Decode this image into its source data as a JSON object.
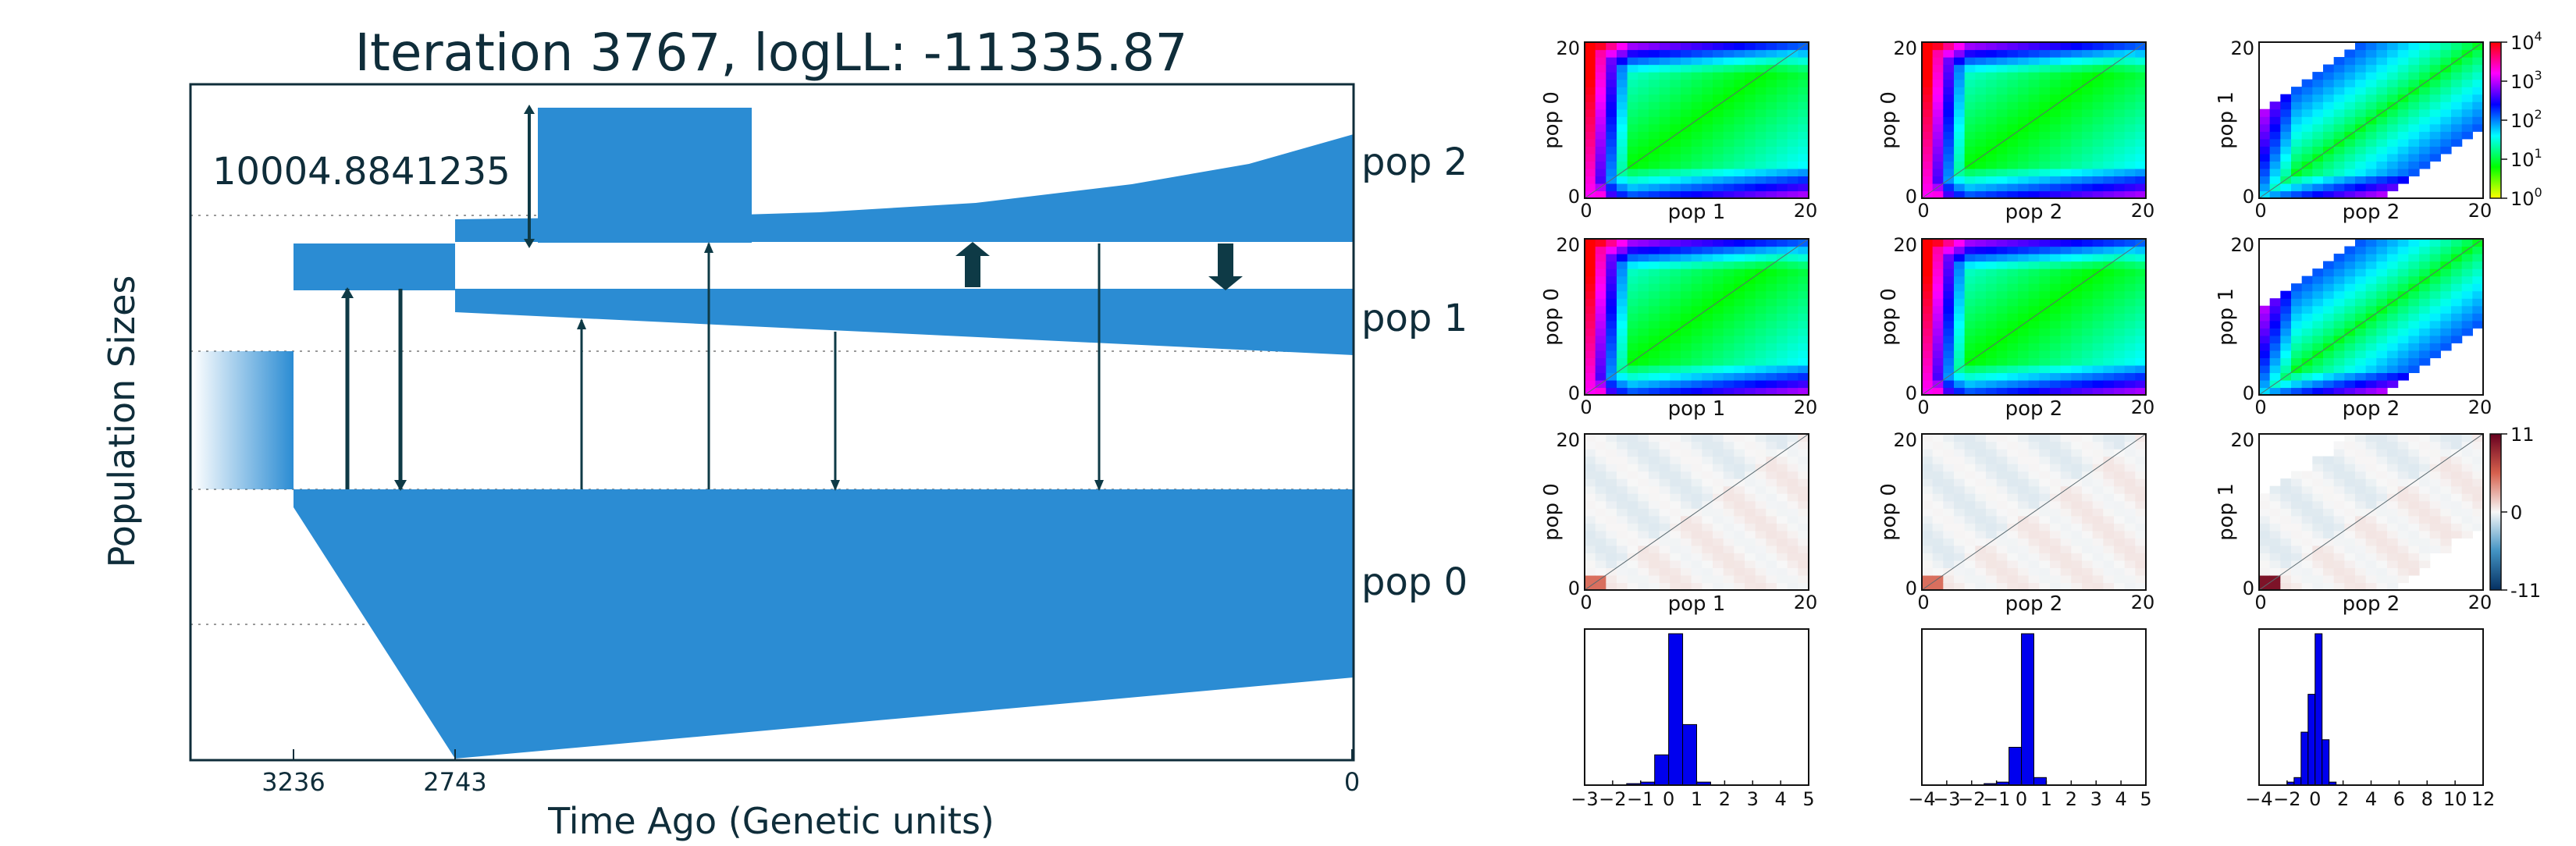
{
  "colors": {
    "band": "#2b8cd3",
    "ink": "#0f2d3a",
    "arrow": "#0e3a46"
  },
  "demography": {
    "title": "Iteration 3767, logLL:  -11335.87",
    "ylabel": "Population Sizes",
    "xlabel": "Time Ago (Genetic units)",
    "scale_label": "10004.8841235",
    "x_ticks": [
      "3236",
      "2743",
      "0"
    ],
    "populations": [
      "pop 2",
      "pop 1",
      "pop 0"
    ]
  },
  "chart_data": [
    {
      "type": "demography",
      "title": "Iteration 3767, logLL:  -11335.87",
      "xlabel": "Time Ago (Genetic units)",
      "ylabel": "Population Sizes",
      "x_ticks": [
        3236,
        2743,
        0
      ],
      "populations": [
        "pop 0",
        "pop 1",
        "pop 2"
      ],
      "split_times": [
        3236,
        2743
      ],
      "scale_bar": 10004.8841235
    },
    {
      "type": "heatmap",
      "panel": "observed",
      "colorbar_ticks": [
        "10^0",
        "10^1",
        "10^2",
        "10^3",
        "10^4"
      ],
      "log_scale": true,
      "pairs": [
        {
          "xlabel": "pop 1",
          "ylabel": "pop 0",
          "xlim": [
            0,
            20
          ],
          "ylim": [
            0,
            20
          ]
        },
        {
          "xlabel": "pop 2",
          "ylabel": "pop 0",
          "xlim": [
            0,
            20
          ],
          "ylim": [
            0,
            20
          ]
        },
        {
          "xlabel": "pop 2",
          "ylabel": "pop 1",
          "xlim": [
            0,
            20
          ],
          "ylim": [
            0,
            20
          ]
        }
      ]
    },
    {
      "type": "heatmap",
      "panel": "expected",
      "pairs": [
        {
          "xlabel": "pop 1",
          "ylabel": "pop 0",
          "xlim": [
            0,
            20
          ],
          "ylim": [
            0,
            20
          ]
        },
        {
          "xlabel": "pop 2",
          "ylabel": "pop 0",
          "xlim": [
            0,
            20
          ],
          "ylim": [
            0,
            20
          ]
        },
        {
          "xlabel": "pop 2",
          "ylabel": "pop 1",
          "xlim": [
            0,
            20
          ],
          "ylim": [
            0,
            20
          ]
        }
      ]
    },
    {
      "type": "heatmap",
      "panel": "residuals",
      "colorbar_ticks": [
        "11",
        "0",
        "-11"
      ],
      "range": [
        -11,
        11
      ],
      "pairs": [
        {
          "xlabel": "pop 1",
          "ylabel": "pop 0",
          "xlim": [
            0,
            20
          ],
          "ylim": [
            0,
            20
          ]
        },
        {
          "xlabel": "pop 2",
          "ylabel": "pop 0",
          "xlim": [
            0,
            20
          ],
          "ylim": [
            0,
            20
          ]
        },
        {
          "xlabel": "pop 2",
          "ylabel": "pop 1",
          "xlim": [
            0,
            20
          ],
          "ylim": [
            0,
            20
          ]
        }
      ]
    },
    {
      "type": "bar",
      "panel": "residual_histograms",
      "histograms": [
        {
          "xticks": [
            "−3",
            "−2",
            "−1",
            "0",
            "1",
            "2",
            "3",
            "4",
            "5"
          ],
          "xlim": [
            -3,
            5
          ],
          "bins": [
            [
              -1.5,
              0.01
            ],
            [
              -1,
              0.02
            ],
            [
              -0.5,
              0.2
            ],
            [
              0,
              1.0
            ],
            [
              0.5,
              0.4
            ],
            [
              1,
              0.02
            ]
          ]
        },
        {
          "xticks": [
            "−4",
            "−3",
            "−2",
            "−1",
            "0",
            "1",
            "2",
            "3",
            "4",
            "5"
          ],
          "xlim": [
            -4,
            5
          ],
          "bins": [
            [
              -1.5,
              0.01
            ],
            [
              -1,
              0.02
            ],
            [
              -0.5,
              0.25
            ],
            [
              0,
              1.0
            ],
            [
              0.5,
              0.05
            ]
          ]
        },
        {
          "xticks": [
            "−4",
            "−2",
            "0",
            "2",
            "4",
            "6",
            "8",
            "10",
            "12"
          ],
          "xlim": [
            -4,
            12
          ],
          "bins": [
            [
              -2,
              0.02
            ],
            [
              -1.5,
              0.05
            ],
            [
              -1,
              0.35
            ],
            [
              -0.5,
              0.6
            ],
            [
              0,
              1.0
            ],
            [
              0.5,
              0.3
            ],
            [
              1,
              0.02
            ]
          ]
        }
      ]
    }
  ]
}
